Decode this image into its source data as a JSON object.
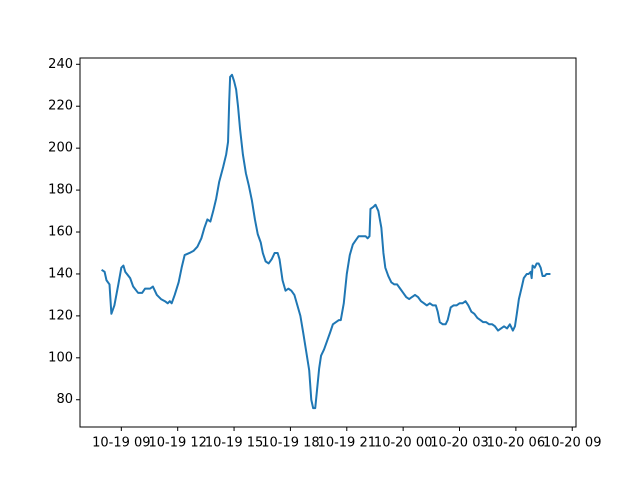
{
  "chart_data": {
    "type": "line",
    "x": [
      7.95,
      8.11,
      8.21,
      8.37,
      8.47,
      8.63,
      8.84,
      9.0,
      9.11,
      9.21,
      9.47,
      9.63,
      9.89,
      10.11,
      10.26,
      10.53,
      10.68,
      10.89,
      11.11,
      11.32,
      11.47,
      11.58,
      11.68,
      11.84,
      12.05,
      12.21,
      12.37,
      12.63,
      12.84,
      13.05,
      13.26,
      13.42,
      13.58,
      13.74,
      13.89,
      14.05,
      14.21,
      14.42,
      14.58,
      14.68,
      14.74,
      14.79,
      14.89,
      15.0,
      15.11,
      15.21,
      15.32,
      15.47,
      15.63,
      15.79,
      15.95,
      16.11,
      16.26,
      16.42,
      16.53,
      16.68,
      16.84,
      17.0,
      17.16,
      17.32,
      17.42,
      17.58,
      17.74,
      17.89,
      18.05,
      18.21,
      18.37,
      18.53,
      18.68,
      18.84,
      19.0,
      19.11,
      19.21,
      19.32,
      19.42,
      19.53,
      19.63,
      19.79,
      19.95,
      20.11,
      20.26,
      20.42,
      20.58,
      20.68,
      20.84,
      21.0,
      21.16,
      21.32,
      21.47,
      21.63,
      21.84,
      22.0,
      22.11,
      22.21,
      22.26,
      22.42,
      22.53,
      22.68,
      22.84,
      22.95,
      23.05,
      23.21,
      23.37,
      23.53,
      23.68,
      23.84,
      24.0,
      24.16,
      24.32,
      24.47,
      24.63,
      24.79,
      24.95,
      25.11,
      25.26,
      25.42,
      25.58,
      25.74,
      25.84,
      25.95,
      26.11,
      26.26,
      26.37,
      26.53,
      26.68,
      26.84,
      27.0,
      27.16,
      27.32,
      27.47,
      27.63,
      27.79,
      27.95,
      28.11,
      28.26,
      28.42,
      28.58,
      28.74,
      28.89,
      29.05,
      29.21,
      29.37,
      29.53,
      29.68,
      29.84,
      29.95,
      30.05,
      30.16,
      30.32,
      30.42,
      30.58,
      30.68,
      30.79,
      30.84,
      30.89,
      31.0,
      31.11,
      31.21,
      31.32,
      31.42,
      31.53,
      31.63,
      31.84
    ],
    "series": [
      {
        "color": "#1f77b4",
        "values": [
          142,
          141,
          137,
          135,
          121,
          125,
          135,
          143,
          144,
          141,
          138,
          134,
          131,
          131,
          133,
          133,
          134,
          130,
          128,
          127,
          126,
          127,
          126,
          130,
          136,
          143,
          149,
          150,
          151,
          153,
          157,
          162,
          166,
          165,
          170,
          176,
          184,
          191,
          197,
          203,
          222,
          234,
          235,
          232,
          228,
          220,
          209,
          197,
          188,
          182,
          175,
          166,
          159,
          155,
          150,
          146,
          145,
          147,
          150,
          150,
          147,
          137,
          132,
          133,
          132,
          130,
          125,
          120,
          112,
          103,
          94,
          80,
          76,
          76,
          85,
          95,
          101,
          104,
          108,
          112,
          116,
          117,
          118,
          118,
          126,
          140,
          149,
          154,
          156,
          158,
          158,
          158,
          157,
          158,
          171,
          172,
          173,
          170,
          162,
          150,
          143,
          139,
          136,
          135,
          135,
          133,
          131,
          129,
          128,
          129,
          130,
          129,
          127,
          126,
          125,
          126,
          125,
          125,
          122,
          117,
          116,
          116,
          118,
          124,
          125,
          125,
          126,
          126,
          127,
          125,
          122,
          121,
          119,
          118,
          117,
          117,
          116,
          116,
          115,
          113,
          114,
          115,
          114,
          116,
          113,
          115,
          121,
          128,
          134,
          138,
          140,
          140,
          141,
          138,
          144,
          143,
          145,
          145,
          143,
          139,
          139,
          140,
          140
        ]
      }
    ],
    "xlim": [
      6.8,
      33.2
    ],
    "xticks": [
      {
        "value": 9,
        "label": "10-19 09"
      },
      {
        "value": 12,
        "label": "10-19 12"
      },
      {
        "value": 15,
        "label": "10-19 15"
      },
      {
        "value": 18,
        "label": "10-19 18"
      },
      {
        "value": 21,
        "label": "10-19 21"
      },
      {
        "value": 24,
        "label": "10-20 00"
      },
      {
        "value": 27,
        "label": "10-20 03"
      },
      {
        "value": 30,
        "label": "10-20 06"
      },
      {
        "value": 33,
        "label": "10-20 09"
      }
    ],
    "ylim": [
      67,
      243
    ],
    "yticks": [
      80,
      100,
      120,
      140,
      160,
      180,
      200,
      220,
      240
    ],
    "grid": false
  }
}
